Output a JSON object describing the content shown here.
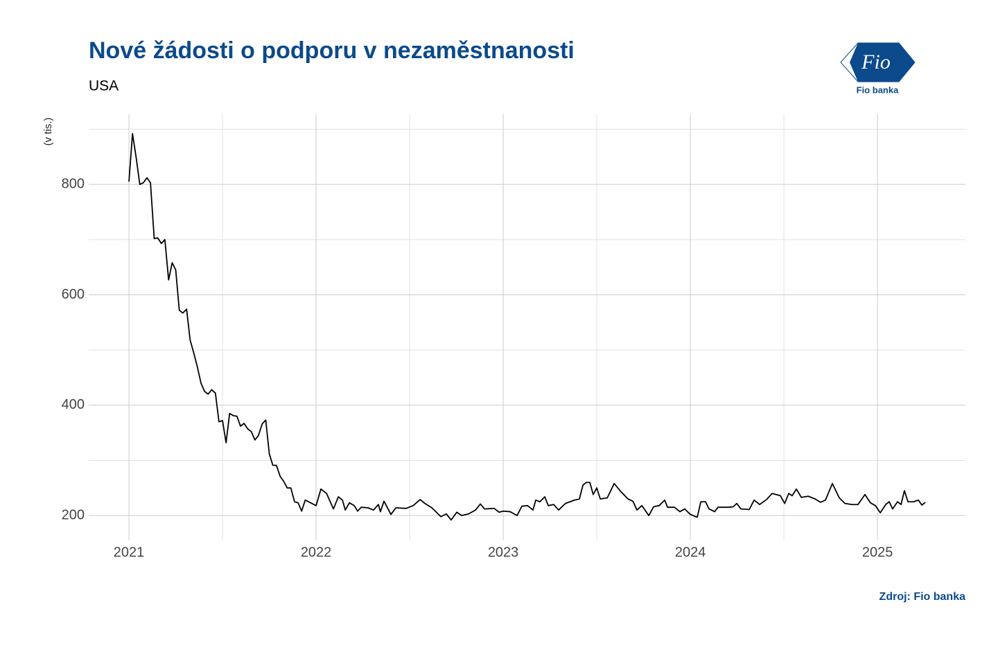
{
  "chart_data": {
    "type": "line",
    "title": "Nové žádosti o podporu v nezaměstnanosti",
    "subtitle": "USA",
    "y_label": "(v tis.)",
    "source": "Zdroj: Fio banka",
    "logo_text": "Fio",
    "logo_caption": "Fio banka",
    "color": "#000000",
    "grid": true,
    "xlim": [
      2020.785,
      2025.47
    ],
    "xticks": [
      2021,
      2022,
      2023,
      2024,
      2025
    ],
    "ylim": [
      155,
      927
    ],
    "yticks": [
      200,
      400,
      600,
      800
    ],
    "x": [
      2021,
      2021.019,
      2021.038,
      2021.058,
      2021.077,
      2021.096,
      2021.115,
      2021.135,
      2021.154,
      2021.173,
      2021.192,
      2021.212,
      2021.231,
      2021.25,
      2021.269,
      2021.288,
      2021.308,
      2021.327,
      2021.346,
      2021.365,
      2021.385,
      2021.404,
      2021.423,
      2021.442,
      2021.462,
      2021.481,
      2021.5,
      2021.519,
      2021.538,
      2021.558,
      2021.577,
      2021.596,
      2021.615,
      2021.635,
      2021.654,
      2021.673,
      2021.692,
      2021.712,
      2021.731,
      2021.75,
      2021.769,
      2021.788,
      2021.808,
      2021.827,
      2021.846,
      2021.865,
      2021.885,
      2021.904,
      2021.923,
      2021.942,
      2022,
      2022.026,
      2022.056,
      2022.093,
      2022.119,
      2022.141,
      2022.156,
      2022.178,
      2022.204,
      2022.222,
      2022.241,
      2022.278,
      2022.307,
      2022.333,
      2022.344,
      2022.363,
      2022.4,
      2022.426,
      2022.481,
      2022.519,
      2022.556,
      2022.581,
      2022.619,
      2022.667,
      2022.696,
      2022.722,
      2022.752,
      2022.778,
      2022.815,
      2022.852,
      2022.878,
      2022.9,
      2022.952,
      2022.978,
      2023,
      2023.037,
      2023.074,
      2023.1,
      2023.13,
      2023.159,
      2023.174,
      2023.196,
      2023.222,
      2023.241,
      2023.27,
      2023.296,
      2023.333,
      2023.381,
      2023.407,
      2023.426,
      2023.444,
      2023.463,
      2023.481,
      2023.5,
      2023.519,
      2023.556,
      2023.593,
      2023.63,
      2023.667,
      2023.693,
      2023.715,
      2023.741,
      2023.778,
      2023.804,
      2023.833,
      2023.863,
      2023.878,
      2023.915,
      2023.944,
      2023.97,
      2024,
      2024.037,
      2024.056,
      2024.081,
      2024.1,
      2024.13,
      2024.148,
      2024.204,
      2024.23,
      2024.248,
      2024.27,
      2024.315,
      2024.341,
      2024.37,
      2024.407,
      2024.437,
      2024.481,
      2024.504,
      2024.526,
      2024.544,
      2024.567,
      2024.593,
      2024.63,
      2024.667,
      2024.696,
      2024.722,
      2024.759,
      2024.796,
      2024.826,
      2024.863,
      2024.896,
      2024.933,
      2024.963,
      2024.989,
      2025.015,
      2025.044,
      2025.063,
      2025.081,
      2025.107,
      2025.126,
      2025.144,
      2025.163,
      2025.193,
      2025.219,
      2025.237,
      2025.256
    ],
    "values": [
      805,
      892,
      850,
      800,
      803,
      812,
      803,
      702,
      703,
      693,
      700,
      627,
      658,
      645,
      572,
      567,
      574,
      518,
      495,
      470,
      440,
      425,
      420,
      428,
      422,
      370,
      372,
      332,
      385,
      381,
      380,
      362,
      367,
      357,
      352,
      337,
      345,
      366,
      373,
      312,
      291,
      291,
      271,
      262,
      250,
      250,
      225,
      223,
      208,
      228,
      218,
      248,
      240,
      212,
      234,
      228,
      210,
      223,
      218,
      208,
      215,
      214,
      210,
      220,
      207,
      226,
      202,
      214,
      213,
      218,
      229,
      222,
      214,
      198,
      203,
      192,
      206,
      200,
      203,
      210,
      221,
      212,
      213,
      206,
      208,
      207,
      200,
      217,
      218,
      210,
      228,
      225,
      234,
      218,
      220,
      210,
      222,
      228,
      230,
      255,
      260,
      260,
      238,
      250,
      230,
      232,
      258,
      243,
      230,
      226,
      210,
      218,
      200,
      216,
      218,
      228,
      215,
      215,
      207,
      212,
      202,
      197,
      225,
      225,
      212,
      207,
      215,
      215,
      216,
      222,
      212,
      211,
      228,
      220,
      229,
      240,
      236,
      222,
      240,
      236,
      248,
      233,
      235,
      230,
      224,
      228,
      258,
      232,
      222,
      220,
      220,
      238,
      223,
      218,
      205,
      220,
      225,
      212,
      225,
      220,
      245,
      225,
      225,
      228,
      219,
      224
    ]
  }
}
